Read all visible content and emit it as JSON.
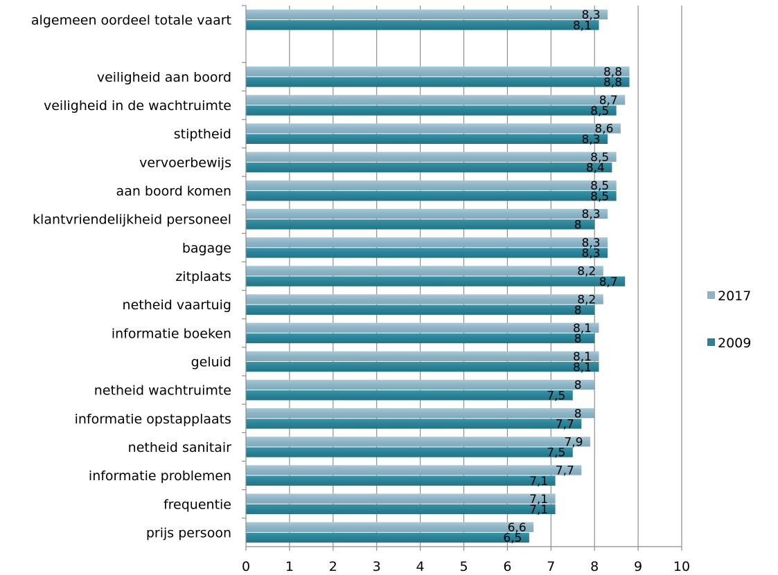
{
  "chart_data": {
    "type": "bar",
    "orientation": "horizontal",
    "categories": [
      "algemeen oordeel totale vaart",
      "",
      "veiligheid aan boord",
      "veiligheid in de wachtruimte",
      "stiptheid",
      "vervoerbewijs",
      "aan boord komen",
      "klantvriendelijkheid personeel",
      "bagage",
      "zitplaats",
      "netheid vaartuig",
      "informatie boeken",
      "geluid",
      "netheid wachtruimte",
      "informatie opstapplaats",
      "netheid sanitair",
      "informatie problemen",
      "frequentie",
      "prijs persoon"
    ],
    "series": [
      {
        "name": "2017",
        "color": "#8DB4C5",
        "values": [
          8.3,
          null,
          8.8,
          8.7,
          8.6,
          8.5,
          8.5,
          8.3,
          8.3,
          8.2,
          8.2,
          8.1,
          8.1,
          8.0,
          8.0,
          7.9,
          7.7,
          7.1,
          6.6
        ],
        "labels": [
          "8,3",
          "",
          "8,8",
          "8,7",
          "8,6",
          "8,5",
          "8,5",
          "8,3",
          "8,3",
          "8,2",
          "8,2",
          "8,1",
          "8,1",
          "8",
          "8",
          "7,9",
          "7,7",
          "7,1",
          "6,6"
        ]
      },
      {
        "name": "2009",
        "color": "#2B8296",
        "values": [
          8.1,
          null,
          8.8,
          8.5,
          8.3,
          8.4,
          8.5,
          8.0,
          8.3,
          8.7,
          8.0,
          8.0,
          8.1,
          7.5,
          7.7,
          7.5,
          7.1,
          7.1,
          6.5
        ],
        "labels": [
          "8,1",
          "",
          "8,8",
          "8,5",
          "8,3",
          "8,4",
          "8,5",
          "8",
          "8,3",
          "8,7",
          "8",
          "8",
          "8,1",
          "7,5",
          "7,7",
          "7,5",
          "7,1",
          "7,1",
          "6,5"
        ]
      }
    ],
    "x_ticks": [
      "0",
      "1",
      "2",
      "3",
      "4",
      "5",
      "6",
      "7",
      "8",
      "9",
      "10"
    ],
    "xlim": [
      0,
      10
    ],
    "grid": "vertical",
    "legend_position": "right"
  }
}
